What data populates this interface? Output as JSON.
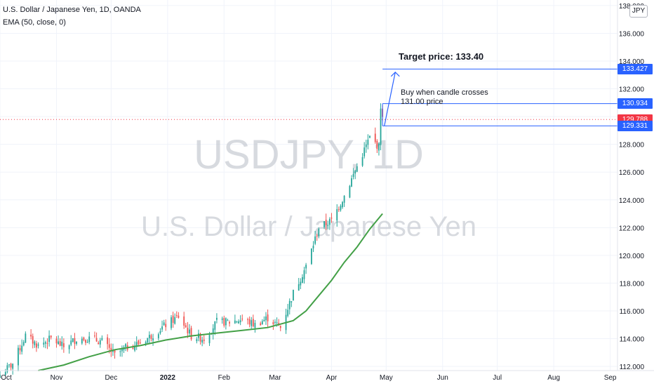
{
  "header": {
    "symbol_title": "U.S. Dollar / Japanese Yen, 1D, OANDA",
    "indicator": "EMA (50, close, 0)"
  },
  "watermark": {
    "symbol": "USDJPY, 1D",
    "name": "U.S. Dollar / Japanese Yen"
  },
  "currency_badge": "JPY",
  "price_tags": {
    "target_level": "133.427",
    "upper_level": "130.934",
    "last_price": "129.788",
    "lower_level": "129.331"
  },
  "annotations": {
    "buy_line1": "Buy when candle crosses",
    "buy_line2": "131.00 price",
    "target": "Target price: 133.40"
  },
  "colors": {
    "up": "#26a69a",
    "down": "#ef5350",
    "ema": "#43a047",
    "levels": "#2962ff",
    "last_price": "#f23645",
    "grid": "#f0f3fa"
  },
  "chart_data": {
    "type": "candlestick",
    "x_axis": {
      "ticks": [
        "Oct",
        "Nov",
        "Dec",
        "2022",
        "Feb",
        "Mar",
        "Apr",
        "May",
        "Jun",
        "Jul",
        "Aug",
        "Sep"
      ],
      "range": [
        "2021-10-01",
        "2022-09-05"
      ]
    },
    "y_axis": {
      "range": [
        111.7,
        138.4
      ],
      "ticks": [
        "112.000",
        "114.000",
        "116.000",
        "118.000",
        "120.000",
        "122.000",
        "124.000",
        "126.000",
        "128.000",
        "130.000",
        "132.000",
        "134.000",
        "136.000",
        "138.000"
      ]
    },
    "grid": true,
    "ohlc_close_path": [
      [
        "2021-10-01",
        111.4
      ],
      [
        "2021-10-08",
        112.2
      ],
      [
        "2021-10-15",
        114.2
      ],
      [
        "2021-10-22",
        113.5
      ],
      [
        "2021-10-29",
        114.0
      ],
      [
        "2021-11-05",
        113.4
      ],
      [
        "2021-11-12",
        114.0
      ],
      [
        "2021-11-19",
        114.0
      ],
      [
        "2021-11-26",
        113.8
      ],
      [
        "2021-12-03",
        112.8
      ],
      [
        "2021-12-10",
        113.4
      ],
      [
        "2021-12-17",
        113.7
      ],
      [
        "2021-12-24",
        114.3
      ],
      [
        "2021-12-31",
        115.0
      ],
      [
        "2022-01-07",
        115.6
      ],
      [
        "2022-01-14",
        114.2
      ],
      [
        "2022-01-21",
        114.0
      ],
      [
        "2022-01-28",
        115.2
      ],
      [
        "2022-02-04",
        115.2
      ],
      [
        "2022-02-11",
        115.4
      ],
      [
        "2022-02-18",
        115.0
      ],
      [
        "2022-02-25",
        115.5
      ],
      [
        "2022-03-04",
        114.8
      ],
      [
        "2022-03-11",
        117.3
      ],
      [
        "2022-03-18",
        119.2
      ],
      [
        "2022-03-25",
        122.0
      ],
      [
        "2022-04-01",
        122.5
      ],
      [
        "2022-04-08",
        124.3
      ],
      [
        "2022-04-15",
        126.4
      ],
      [
        "2022-04-22",
        128.5
      ],
      [
        "2022-04-27",
        127.8
      ],
      [
        "2022-04-28",
        130.8
      ],
      [
        "2022-04-29",
        129.8
      ]
    ],
    "series": [
      {
        "name": "EMA (50, close, 0)",
        "points": [
          [
            "2021-10-22",
            111.7
          ],
          [
            "2021-11-05",
            112.1
          ],
          [
            "2021-11-19",
            112.7
          ],
          [
            "2021-12-03",
            113.2
          ],
          [
            "2021-12-17",
            113.5
          ],
          [
            "2021-12-31",
            113.9
          ],
          [
            "2022-01-14",
            114.2
          ],
          [
            "2022-01-28",
            114.4
          ],
          [
            "2022-02-11",
            114.6
          ],
          [
            "2022-02-25",
            114.8
          ],
          [
            "2022-03-11",
            115.3
          ],
          [
            "2022-03-18",
            116.0
          ],
          [
            "2022-03-25",
            117.1
          ],
          [
            "2022-04-01",
            118.2
          ],
          [
            "2022-04-08",
            119.5
          ],
          [
            "2022-04-15",
            120.6
          ],
          [
            "2022-04-22",
            121.9
          ],
          [
            "2022-04-29",
            123.0
          ]
        ]
      }
    ],
    "levels": [
      133.427,
      130.934,
      129.331
    ],
    "last_price": 129.788,
    "target_arrow": {
      "from": [
        "2022-04-30",
        129.331
      ],
      "to": [
        "2022-05-06",
        133.2
      ]
    }
  }
}
